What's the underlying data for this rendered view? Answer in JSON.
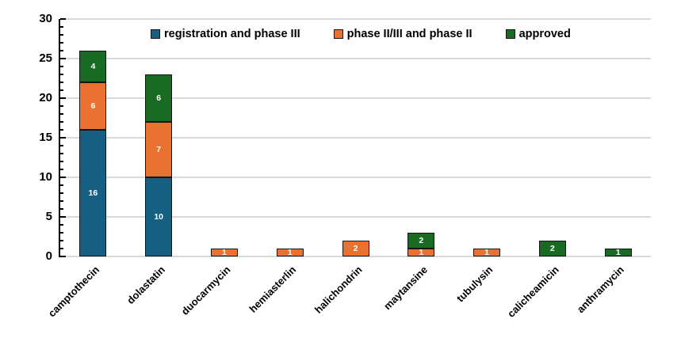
{
  "chart_data": {
    "type": "bar",
    "stacked": true,
    "title": "",
    "xlabel": "",
    "ylabel": "",
    "categories": [
      "camptothecin",
      "dolastatin",
      "duocarmycin",
      "hemiasterlin",
      "halichondrin",
      "maytansine",
      "tubulysin",
      "calicheamicin",
      "anthramycin"
    ],
    "series": [
      {
        "name": "registration and phase III",
        "color": "#156082",
        "values": [
          16,
          10,
          0,
          0,
          0,
          0,
          0,
          0,
          0
        ]
      },
      {
        "name": "phase II/III and phase II",
        "color": "#E97132",
        "values": [
          6,
          7,
          1,
          1,
          2,
          1,
          1,
          0,
          0
        ]
      },
      {
        "name": "approved",
        "color": "#196B24",
        "values": [
          4,
          6,
          0,
          0,
          0,
          2,
          0,
          2,
          1
        ]
      }
    ],
    "ylim": [
      0,
      30
    ],
    "yticks": [
      0,
      5,
      10,
      15,
      20,
      25,
      30
    ],
    "minor_tick_interval": 1,
    "grid": true,
    "legend_position": "top",
    "data_labels_shown": true,
    "data_label_color": "#FFFFFF",
    "segment_border_color": "#161616",
    "gridline_color": "#D9D9D9",
    "axis_color": "#000000",
    "background_color": "#FFFFFF"
  }
}
